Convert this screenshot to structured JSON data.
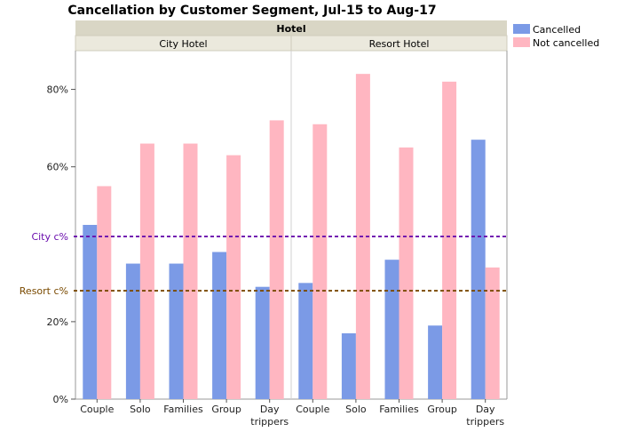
{
  "chart_data": {
    "type": "bar",
    "title": "Cancellation by Customer Segment, Jul-15 to Aug-17",
    "facet_header": "Hotel",
    "yticks": [
      "0%",
      "20%",
      "60%",
      "80%"
    ],
    "ytick_values": [
      0,
      20,
      60,
      80
    ],
    "ylim": [
      0,
      90
    ],
    "grid": false,
    "legend_position": "top-right",
    "legend": [
      {
        "label": "Cancelled",
        "color": "#7b9ae6"
      },
      {
        "label": "Not cancelled",
        "color": "#ffb6c1"
      }
    ],
    "panels": [
      {
        "name": "City Hotel",
        "categories": [
          "Couple",
          "Solo",
          "Families",
          "Group",
          "Day trippers"
        ],
        "category_lines": [
          [
            "Couple"
          ],
          [
            "Solo"
          ],
          [
            "Families"
          ],
          [
            "Group"
          ],
          [
            "Day",
            "trippers"
          ]
        ],
        "series": [
          {
            "name": "Cancelled",
            "values": [
              45,
              35,
              35,
              38,
              29
            ]
          },
          {
            "name": "Not cancelled",
            "values": [
              55,
              66,
              66,
              63,
              72
            ]
          }
        ]
      },
      {
        "name": "Resort Hotel",
        "categories": [
          "Couple",
          "Solo",
          "Families",
          "Group",
          "Day trippers"
        ],
        "category_lines": [
          [
            "Couple"
          ],
          [
            "Solo"
          ],
          [
            "Families"
          ],
          [
            "Group"
          ],
          [
            "Day",
            "trippers"
          ]
        ],
        "series": [
          {
            "name": "Cancelled",
            "values": [
              30,
              17,
              36,
              19,
              67
            ]
          },
          {
            "name": "Not cancelled",
            "values": [
              71,
              84,
              65,
              82,
              34
            ]
          }
        ]
      }
    ],
    "reference_lines": [
      {
        "label": "City c%",
        "value": 42,
        "color": "#6a0dad"
      },
      {
        "label": "Resort c%",
        "value": 28,
        "color": "#7a4a00"
      }
    ]
  }
}
